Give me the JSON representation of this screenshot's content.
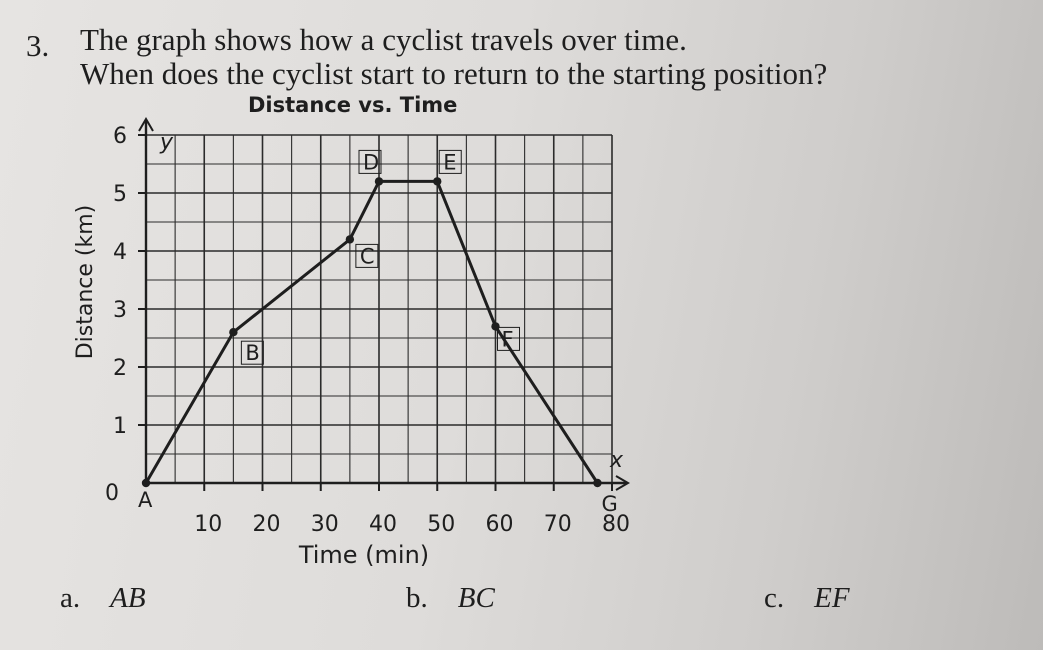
{
  "question": {
    "number": "3.",
    "line1": "The graph shows how a cyclist travels over time.",
    "line2": "When does the cyclist start to return to the starting position?"
  },
  "chart_data": {
    "type": "line",
    "title": "Distance vs. Time",
    "xlabel": "Time (min)",
    "ylabel": "Distance (km)",
    "x_axis_letter": "x",
    "y_axis_letter": "y",
    "xlim": [
      0,
      80
    ],
    "ylim": [
      0,
      6
    ],
    "origin_label": "0",
    "x_ticks": [
      {
        "value": 10,
        "label": "10"
      },
      {
        "value": 20,
        "label": "20"
      },
      {
        "value": 30,
        "label": "30"
      },
      {
        "value": 40,
        "label": "40"
      },
      {
        "value": 50,
        "label": "50"
      },
      {
        "value": 60,
        "label": "60"
      },
      {
        "value": 70,
        "label": "70"
      },
      {
        "value": 80,
        "label": "80"
      }
    ],
    "y_ticks": [
      {
        "value": 1,
        "label": "1"
      },
      {
        "value": 2,
        "label": "2"
      },
      {
        "value": 3,
        "label": "3"
      },
      {
        "value": 4,
        "label": "4"
      },
      {
        "value": 5,
        "label": "5"
      },
      {
        "value": 6,
        "label": "6"
      }
    ],
    "grid": true,
    "points": [
      {
        "label": "A",
        "x": 0,
        "y": 0
      },
      {
        "label": "B",
        "x": 15,
        "y": 2.6
      },
      {
        "label": "C",
        "x": 35,
        "y": 4.2
      },
      {
        "label": "D",
        "x": 40,
        "y": 5.2
      },
      {
        "label": "E",
        "x": 50,
        "y": 5.2
      },
      {
        "label": "F",
        "x": 60,
        "y": 2.7
      },
      {
        "label": "G",
        "x": 77.5,
        "y": 0
      }
    ],
    "point_label_boxes": [
      "B",
      "C",
      "D",
      "E",
      "F"
    ]
  },
  "options": [
    {
      "letter": "a.",
      "answer": "AB"
    },
    {
      "letter": "b.",
      "answer": "BC"
    },
    {
      "letter": "c.",
      "answer": "EF"
    }
  ],
  "colors": {
    "ink": "#1e1e1e",
    "grid": "#2b2b2b"
  }
}
